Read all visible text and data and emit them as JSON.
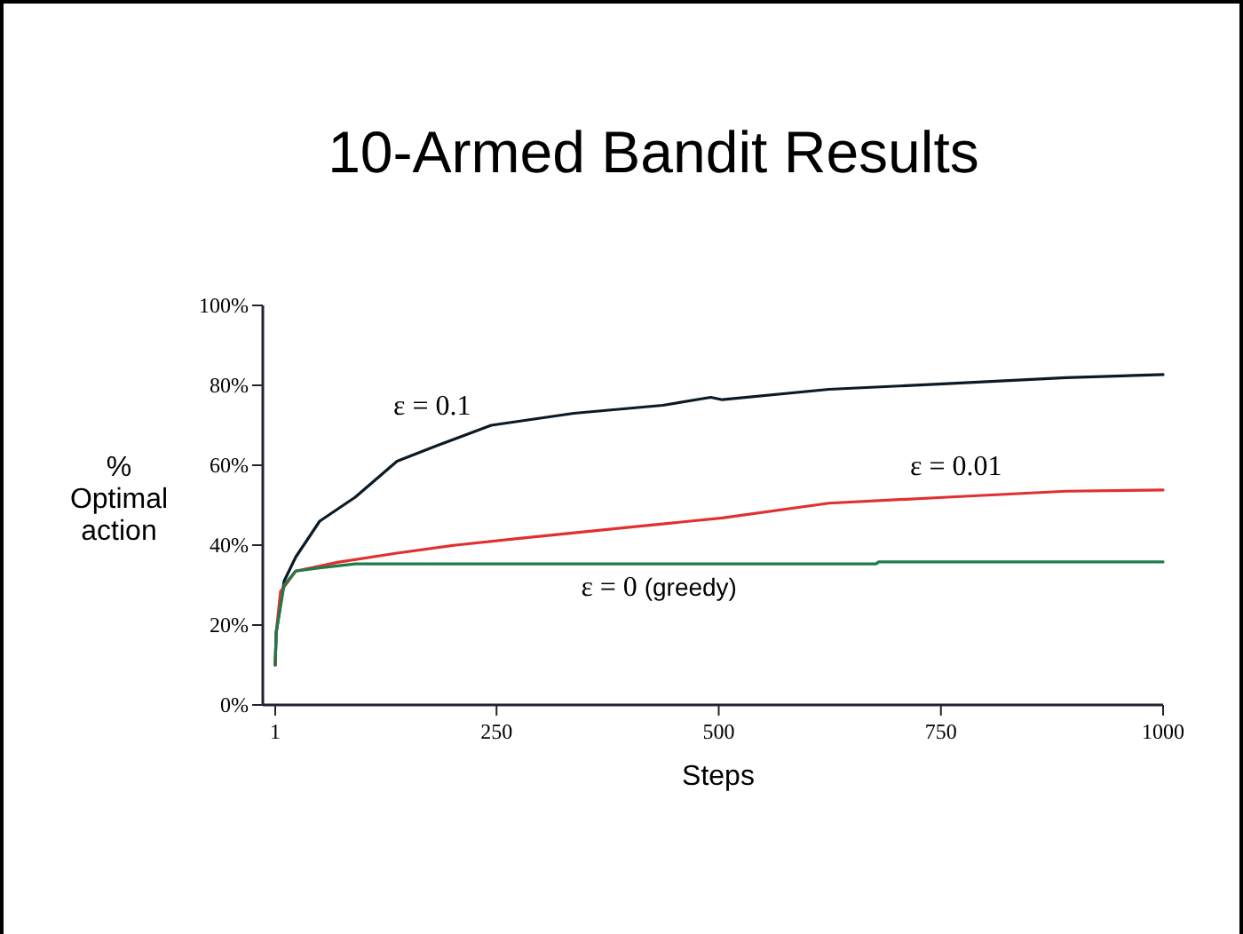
{
  "chart_data": {
    "type": "line",
    "title": "10-Armed Bandit Results",
    "xlabel": "Steps",
    "ylabel": "% Optimal action",
    "xlim": [
      -13,
      1000
    ],
    "xticks": [
      1,
      250,
      500,
      750,
      1000
    ],
    "ylim": [
      0,
      100
    ],
    "yticks": [
      {
        "value": 0,
        "label": "0%"
      },
      {
        "value": 20,
        "label": "20%"
      },
      {
        "value": 40,
        "label": "40%"
      },
      {
        "value": 60,
        "label": "60%"
      },
      {
        "value": 80,
        "label": "80%"
      },
      {
        "value": 100,
        "label": "100%"
      }
    ],
    "grid": false,
    "marker": "none",
    "line_style": "solid",
    "series": [
      {
        "name": "ε = 0.1",
        "color": "#0b1a24",
        "x": [
          1,
          2,
          11,
          24,
          51,
          91,
          138,
          184,
          244,
          337,
          437,
          491,
          504,
          624,
          757,
          891,
          1000
        ],
        "values": [
          10,
          18,
          31,
          37,
          46,
          52,
          61,
          65,
          70,
          73,
          75,
          77,
          76.4,
          79,
          80.4,
          81.9,
          82.7
        ]
      },
      {
        "name": "ε = 0.01",
        "color": "#e03030",
        "x": [
          1,
          2,
          7,
          24,
          71,
          138,
          204,
          271,
          404,
          504,
          624,
          757,
          891,
          1000
        ],
        "values": [
          10,
          18,
          28.4,
          33.5,
          35.7,
          38,
          40,
          41.6,
          44.6,
          46.8,
          50.5,
          52,
          53.5,
          53.8
        ]
      },
      {
        "name": "ε = 0 (greedy)",
        "color": "#1f7a4a",
        "x": [
          1,
          2,
          11,
          24,
          51,
          91,
          677,
          680,
          1000
        ],
        "values": [
          10,
          18,
          30,
          33.5,
          34.3,
          35.3,
          35.3,
          35.8,
          35.8
        ]
      }
    ]
  }
}
